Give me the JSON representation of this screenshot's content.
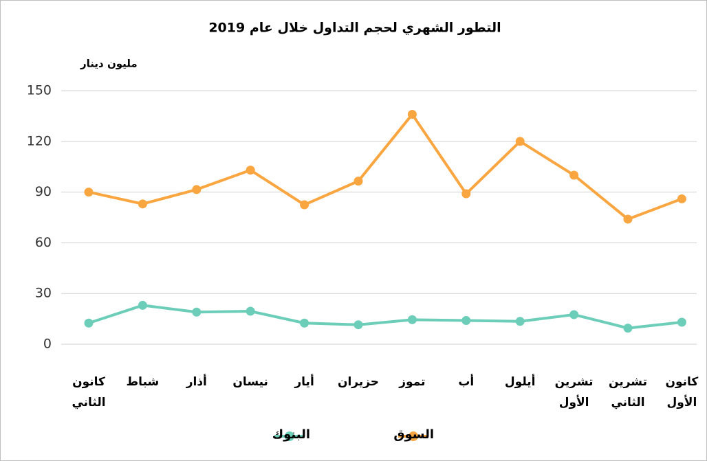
{
  "chart_data": {
    "type": "line",
    "title": "التطور الشهري لحجم التداول خلال عام 2019",
    "y_label": "مليون دينار",
    "categories": [
      "كانون الثاني",
      "شباط",
      "أذار",
      "نيسان",
      "أيار",
      "حزيران",
      "تموز",
      "أب",
      "أيلول",
      "تشرين الأول",
      "تشرين الثاني",
      "كانون الأول"
    ],
    "series": [
      {
        "name": "السوق",
        "color": "#f9a540",
        "values": [
          90,
          83,
          91.5,
          103,
          82.5,
          96.5,
          136,
          89,
          120,
          100,
          74,
          86
        ]
      },
      {
        "name": "البنوك",
        "color": "#6ccdb8",
        "values": [
          12.5,
          23,
          19,
          19.5,
          12.5,
          11.5,
          14.5,
          14,
          13.5,
          17.5,
          9.5,
          13
        ]
      }
    ],
    "ylim": [
      0,
      150
    ],
    "yticks": [
      0,
      30,
      60,
      90,
      120,
      150
    ],
    "grid": true
  }
}
